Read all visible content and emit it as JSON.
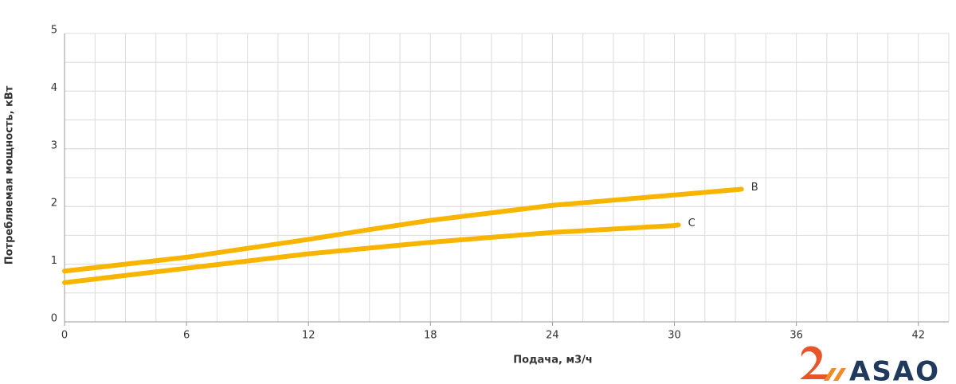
{
  "chart_data": {
    "type": "line",
    "xlabel": "Подача, м3/ч",
    "ylabel": "Потребляемая мощность, кВт",
    "xlim": [
      0,
      43.5
    ],
    "xticks": [
      0,
      6,
      12,
      18,
      24,
      30,
      36,
      42
    ],
    "ylim": [
      0,
      5
    ],
    "yticks": [
      0,
      1,
      2,
      3,
      4,
      5
    ],
    "grid": true,
    "x_minor_per_tick": 4,
    "y_minor_per_tick": 2,
    "series": [
      {
        "name": "B",
        "color": "#f7b500",
        "x": [
          0,
          6,
          12,
          15,
          18,
          24,
          30,
          33.3
        ],
        "values": [
          0.88,
          1.12,
          1.43,
          1.6,
          1.76,
          2.02,
          2.2,
          2.3
        ]
      },
      {
        "name": "C",
        "color": "#f7b500",
        "x": [
          0,
          6,
          12,
          18,
          24,
          30,
          30.2
        ],
        "values": [
          0.68,
          0.93,
          1.18,
          1.38,
          1.55,
          1.67,
          1.68
        ]
      }
    ]
  },
  "logo": {
    "text": "ASAO"
  }
}
